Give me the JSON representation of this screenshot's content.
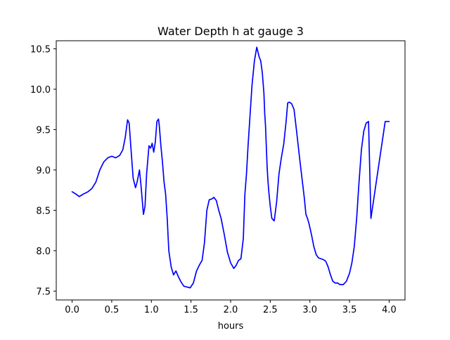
{
  "chart_data": {
    "type": "line",
    "title": "Water Depth h at gauge 3",
    "xlabel": "hours",
    "ylabel": "",
    "xlim": [
      -0.2,
      4.2
    ],
    "ylim": [
      7.39,
      10.6
    ],
    "xticks": [
      0.0,
      0.5,
      1.0,
      1.5,
      2.0,
      2.5,
      3.0,
      3.5,
      4.0
    ],
    "xtick_labels": [
      "0.0",
      "0.5",
      "1.0",
      "1.5",
      "2.0",
      "2.5",
      "3.0",
      "3.5",
      "4.0"
    ],
    "yticks": [
      7.5,
      8.0,
      8.5,
      9.0,
      9.5,
      10.0,
      10.5
    ],
    "ytick_labels": [
      "7.5",
      "8.0",
      "8.5",
      "9.0",
      "9.5",
      "10.0",
      "10.5"
    ],
    "grid": false,
    "series": [
      {
        "color": "#0000ff",
        "x": [
          0.0,
          0.05,
          0.09,
          0.14,
          0.2,
          0.25,
          0.3,
          0.35,
          0.4,
          0.45,
          0.5,
          0.55,
          0.6,
          0.64,
          0.67,
          0.7,
          0.72,
          0.74,
          0.77,
          0.8,
          0.82,
          0.85,
          0.87,
          0.9,
          0.92,
          0.94,
          0.97,
          0.99,
          1.01,
          1.03,
          1.05,
          1.07,
          1.09,
          1.1,
          1.12,
          1.14,
          1.16,
          1.18,
          1.2,
          1.22,
          1.25,
          1.28,
          1.31,
          1.34,
          1.37,
          1.41,
          1.45,
          1.49,
          1.53,
          1.57,
          1.61,
          1.64,
          1.67,
          1.7,
          1.73,
          1.76,
          1.79,
          1.82,
          1.85,
          1.88,
          1.92,
          1.96,
          2.0,
          2.04,
          2.07,
          2.1,
          2.13,
          2.16,
          2.18,
          2.2,
          2.22,
          2.25,
          2.27,
          2.3,
          2.33,
          2.36,
          2.38,
          2.4,
          2.42,
          2.43,
          2.44,
          2.45,
          2.46,
          2.47,
          2.48,
          2.5,
          2.52,
          2.55,
          2.58,
          2.61,
          2.64,
          2.67,
          2.7,
          2.72,
          2.74,
          2.77,
          2.8,
          2.83,
          2.87,
          2.9,
          2.93,
          2.95,
          2.97,
          2.99,
          3.02,
          3.05,
          3.08,
          3.11,
          3.14,
          3.17,
          3.2,
          3.23,
          3.26,
          3.29,
          3.32,
          3.35,
          3.38,
          3.42,
          3.46,
          3.5,
          3.53,
          3.56,
          3.59,
          3.62,
          3.65,
          3.68,
          3.71,
          3.74,
          3.77,
          3.8,
          3.83,
          3.86,
          3.89,
          3.92,
          3.95,
          3.98,
          4.0
        ],
        "y": [
          8.73,
          8.7,
          8.67,
          8.7,
          8.73,
          8.77,
          8.85,
          9.0,
          9.1,
          9.15,
          9.17,
          9.15,
          9.18,
          9.25,
          9.4,
          9.62,
          9.58,
          9.3,
          8.9,
          8.78,
          8.85,
          9.0,
          8.8,
          8.45,
          8.55,
          8.95,
          9.3,
          9.27,
          9.33,
          9.22,
          9.35,
          9.6,
          9.63,
          9.55,
          9.3,
          9.1,
          8.85,
          8.7,
          8.4,
          8.0,
          7.8,
          7.7,
          7.75,
          7.68,
          7.62,
          7.56,
          7.55,
          7.54,
          7.6,
          7.75,
          7.83,
          7.88,
          8.1,
          8.5,
          8.63,
          8.64,
          8.66,
          8.62,
          8.5,
          8.4,
          8.2,
          7.98,
          7.85,
          7.78,
          7.82,
          7.88,
          7.9,
          8.15,
          8.7,
          8.95,
          9.3,
          9.75,
          10.05,
          10.35,
          10.52,
          10.4,
          10.35,
          10.2,
          9.95,
          9.7,
          9.55,
          9.3,
          9.05,
          8.88,
          8.75,
          8.55,
          8.4,
          8.37,
          8.6,
          8.95,
          9.15,
          9.32,
          9.6,
          9.83,
          9.84,
          9.82,
          9.75,
          9.5,
          9.15,
          8.9,
          8.65,
          8.45,
          8.4,
          8.33,
          8.2,
          8.05,
          7.95,
          7.91,
          7.9,
          7.89,
          7.87,
          7.8,
          7.7,
          7.62,
          7.6,
          7.6,
          7.58,
          7.58,
          7.62,
          7.72,
          7.85,
          8.05,
          8.4,
          8.85,
          9.25,
          9.48,
          9.58,
          9.6,
          8.4,
          8.6,
          8.8,
          9.0,
          9.2,
          9.4,
          9.6,
          9.6,
          9.6
        ]
      }
    ]
  }
}
